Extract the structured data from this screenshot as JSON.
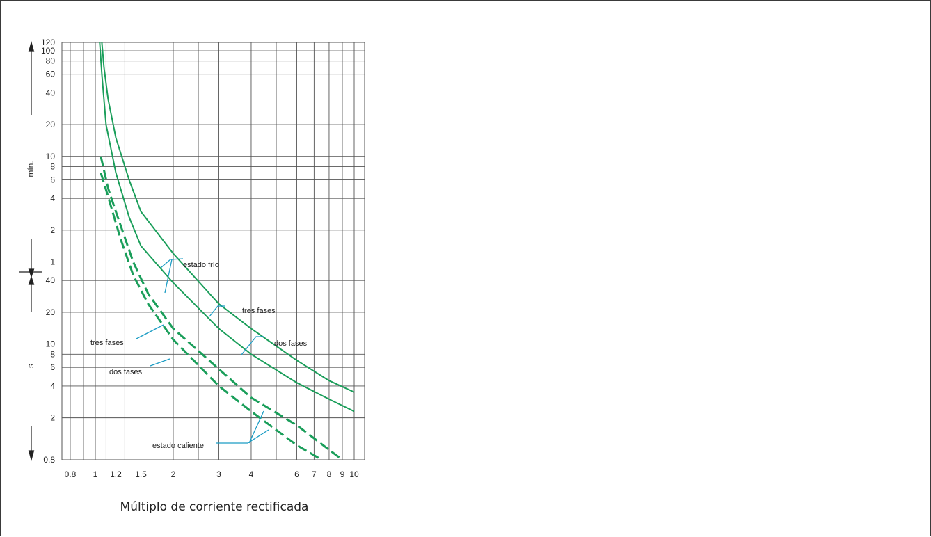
{
  "chart_data": {
    "type": "line",
    "title": "",
    "xlabel": "Múltiplo de corriente rectificada",
    "x_scale": "log",
    "x_ticks": [
      "0.8",
      "1",
      "1.2",
      "1.5",
      "2",
      "3",
      "4",
      "6",
      "7",
      "8",
      "9",
      "10"
    ],
    "y_scale": "log",
    "y_unit_minutes": "mín.",
    "y_unit_seconds": "s",
    "y_ticks_minutes": [
      "120",
      "100",
      "80",
      "60",
      "40",
      "20",
      "10",
      "8",
      "6",
      "4",
      "2",
      "1"
    ],
    "y_ticks_seconds": [
      "40",
      "20",
      "10",
      "8",
      "6",
      "4",
      "2",
      "0.8"
    ],
    "annotations": {
      "cold": "estado frío",
      "hot": "estado caliente",
      "three_phase_cold": "tres fases",
      "two_phase_cold": "dos fases",
      "three_phase_hot": "tres fases",
      "two_phase_hot": "dos fases"
    },
    "series": [
      {
        "group": "cold",
        "phases": "three",
        "style": "solid",
        "x": [
          1.06,
          1.08,
          1.12,
          1.2,
          1.35,
          1.5,
          2.0,
          3.0,
          4.0,
          6.0,
          8.0,
          10.0
        ],
        "y_seconds": [
          7200,
          4200,
          2100,
          900,
          360,
          180,
          72,
          24,
          14,
          7,
          4.5,
          3.5
        ]
      },
      {
        "group": "cold",
        "phases": "two",
        "style": "solid",
        "x": [
          1.04,
          1.06,
          1.1,
          1.2,
          1.35,
          1.5,
          2.0,
          3.0,
          4.0,
          6.0,
          8.0,
          10.0
        ],
        "y_seconds": [
          7200,
          3600,
          1200,
          420,
          160,
          85,
          38,
          14,
          8,
          4.3,
          3.0,
          2.3
        ]
      },
      {
        "group": "hot",
        "phases": "three",
        "style": "dashed",
        "x": [
          1.05,
          1.12,
          1.2,
          1.4,
          1.6,
          2.0,
          3.0,
          4.0,
          6.0,
          9.0
        ],
        "y_seconds": [
          600,
          300,
          180,
          60,
          30,
          14,
          5.8,
          3.1,
          1.7,
          0.8
        ]
      },
      {
        "group": "hot",
        "phases": "two",
        "style": "dashed",
        "x": [
          1.05,
          1.12,
          1.25,
          1.4,
          1.6,
          2.0,
          3.0,
          4.0,
          6.0,
          7.5
        ],
        "y_seconds": [
          420,
          250,
          100,
          45,
          24,
          11,
          4.0,
          2.3,
          1.1,
          0.8
        ]
      }
    ],
    "colors": {
      "curve": "#1a9e5a",
      "annotation": "#1b9cc4",
      "grid": "#555555",
      "text": "#222222"
    }
  }
}
